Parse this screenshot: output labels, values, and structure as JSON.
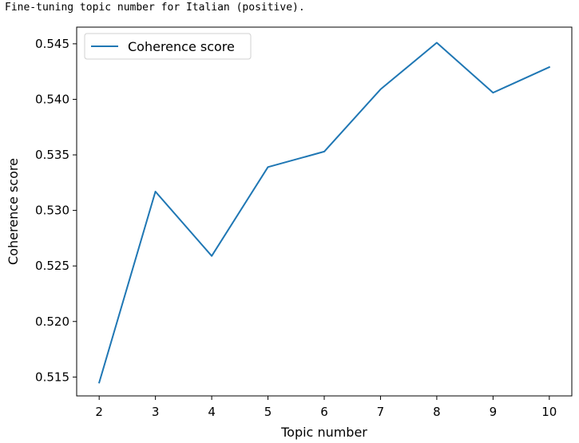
{
  "caption": "Fine-tuning topic number for Italian (positive).",
  "chart_data": {
    "type": "line",
    "title": "",
    "xlabel": "Topic number",
    "ylabel": "Coherence score",
    "x": [
      2,
      3,
      4,
      5,
      6,
      7,
      8,
      9,
      10
    ],
    "series": [
      {
        "name": "Coherence score",
        "color": "#1f77b4",
        "values": [
          0.5145,
          0.5317,
          0.5259,
          0.5339,
          0.5353,
          0.5409,
          0.5451,
          0.5406,
          0.5429
        ]
      }
    ],
    "xticks": [
      2,
      3,
      4,
      5,
      6,
      7,
      8,
      9,
      10
    ],
    "yticks": [
      0.515,
      0.52,
      0.525,
      0.53,
      0.535,
      0.54,
      0.545
    ],
    "ytick_labels": [
      "0.515",
      "0.520",
      "0.525",
      "0.530",
      "0.535",
      "0.540",
      "0.545"
    ],
    "xlim": [
      1.6,
      10.4
    ],
    "ylim": [
      0.5133,
      0.5465
    ],
    "grid": false,
    "legend": "upper-left"
  }
}
